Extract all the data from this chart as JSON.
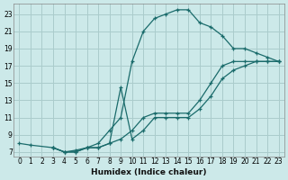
{
  "xlabel": "Humidex (Indice chaleur)",
  "bg_color": "#cce9e9",
  "grid_color": "#aacccc",
  "line_color": "#1a6b6b",
  "curve1_x": [
    0,
    1,
    3,
    4,
    5,
    6,
    7,
    8,
    9,
    10,
    11,
    12,
    13,
    14,
    15,
    16,
    17,
    18,
    19,
    20,
    21,
    22,
    23
  ],
  "curve1_y": [
    8.0,
    7.8,
    7.5,
    7.0,
    7.2,
    7.5,
    8.0,
    9.5,
    11.0,
    17.5,
    21.0,
    22.5,
    23.0,
    23.5,
    23.5,
    22.0,
    21.5,
    20.5,
    19.0,
    19.0,
    18.5,
    18.0,
    17.5
  ],
  "curve2_x": [
    3,
    4,
    5,
    6,
    7,
    8,
    9,
    10,
    11,
    12,
    13,
    14,
    15,
    16,
    17,
    18,
    19,
    20,
    21,
    22,
    23
  ],
  "curve2_y": [
    7.5,
    7.0,
    7.0,
    7.5,
    7.5,
    8.0,
    8.5,
    9.5,
    11.0,
    11.5,
    11.5,
    11.5,
    11.5,
    13.0,
    15.0,
    17.0,
    17.5,
    17.5,
    17.5,
    17.5,
    17.5
  ],
  "curve3_x": [
    3,
    4,
    5,
    6,
    7,
    8,
    9,
    10,
    11,
    12,
    13,
    14,
    15,
    16,
    17,
    18,
    19,
    20,
    21,
    22,
    23
  ],
  "curve3_y": [
    7.5,
    7.0,
    7.0,
    7.5,
    7.5,
    8.0,
    14.5,
    8.5,
    9.5,
    11.0,
    11.0,
    11.0,
    11.0,
    12.0,
    13.5,
    15.5,
    16.5,
    17.0,
    17.5,
    17.5,
    17.5
  ],
  "xlim": [
    -0.5,
    23.5
  ],
  "ylim": [
    6.5,
    24.2
  ],
  "yticks": [
    7,
    9,
    11,
    13,
    15,
    17,
    19,
    21,
    23
  ],
  "xticks": [
    0,
    1,
    2,
    3,
    4,
    5,
    6,
    7,
    8,
    9,
    10,
    11,
    12,
    13,
    14,
    15,
    16,
    17,
    18,
    19,
    20,
    21,
    22,
    23
  ],
  "tick_fontsize": 5.5,
  "xlabel_fontsize": 6.5
}
